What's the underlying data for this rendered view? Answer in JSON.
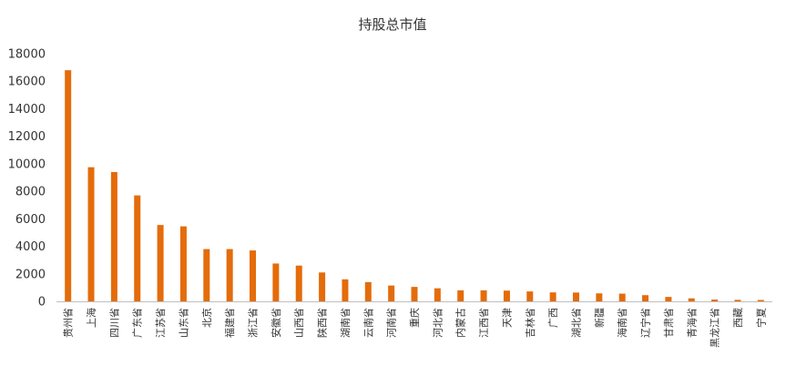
{
  "chart_data": {
    "type": "bar",
    "title": "持股总市值",
    "xlabel": "",
    "ylabel": "",
    "ylim": [
      0,
      18000
    ],
    "yticks": [
      0,
      2000,
      4000,
      6000,
      8000,
      10000,
      12000,
      14000,
      16000,
      18000
    ],
    "grid": false,
    "legend": "none",
    "bar_color": "#E46C0A",
    "categories": [
      "贵州省",
      "上海",
      "四川省",
      "广东省",
      "江苏省",
      "山东省",
      "北京",
      "福建省",
      "浙江省",
      "安徽省",
      "山西省",
      "陕西省",
      "湖南省",
      "云南省",
      "河南省",
      "重庆",
      "河北省",
      "内蒙古",
      "江西省",
      "天津",
      "吉林省",
      "广西",
      "湖北省",
      "新疆",
      "海南省",
      "辽宁省",
      "甘肃省",
      "青海省",
      "黑龙江省",
      "西藏",
      "宁夏"
    ],
    "values": [
      16800,
      9750,
      9400,
      7700,
      5550,
      5450,
      3800,
      3800,
      3700,
      2750,
      2600,
      2100,
      1600,
      1400,
      1150,
      1050,
      950,
      800,
      800,
      780,
      720,
      650,
      640,
      580,
      560,
      450,
      320,
      220,
      130,
      110,
      100
    ]
  }
}
